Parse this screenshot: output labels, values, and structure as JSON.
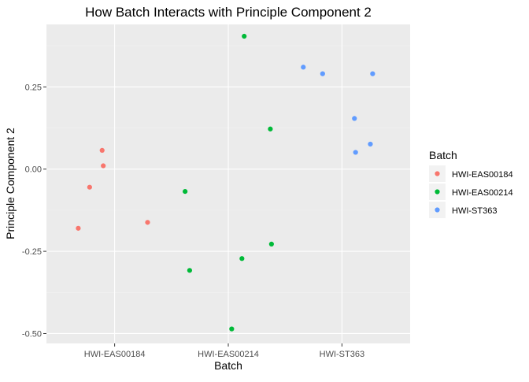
{
  "chart_data": {
    "type": "scatter",
    "title": "How Batch Interacts with Principle Component 2",
    "xlabel": "Batch",
    "ylabel": "Principle Component 2",
    "categories": [
      "HWI-EAS00184",
      "HWI-EAS00214",
      "HWI-ST363"
    ],
    "ylim": [
      -0.53,
      0.44
    ],
    "yticks": [
      -0.5,
      -0.25,
      0.0,
      0.25
    ],
    "ytick_labels": [
      "-0.50",
      "-0.25",
      "0.00",
      "0.25"
    ],
    "grid": true,
    "legend": {
      "title": "Batch",
      "placement": "right"
    },
    "series": [
      {
        "name": "HWI-EAS00184",
        "color": "#F8766D",
        "points": [
          {
            "x": -0.11,
            "y": 0.057
          },
          {
            "x": -0.1,
            "y": 0.01
          },
          {
            "x": -0.22,
            "y": -0.055
          },
          {
            "x": -0.32,
            "y": -0.18
          },
          {
            "x": 0.29,
            "y": -0.162
          }
        ]
      },
      {
        "name": "HWI-EAS00214",
        "color": "#00BA38",
        "points": [
          {
            "x": 1.14,
            "y": 0.404
          },
          {
            "x": 1.37,
            "y": 0.122
          },
          {
            "x": 0.62,
            "y": -0.068
          },
          {
            "x": 1.38,
            "y": -0.228
          },
          {
            "x": 1.12,
            "y": -0.272
          },
          {
            "x": 0.66,
            "y": -0.308
          },
          {
            "x": 1.03,
            "y": -0.486
          }
        ]
      },
      {
        "name": "HWI-ST363",
        "color": "#619CFF",
        "points": [
          {
            "x": 1.66,
            "y": 0.31
          },
          {
            "x": 1.83,
            "y": 0.29
          },
          {
            "x": 2.27,
            "y": 0.29
          },
          {
            "x": 2.11,
            "y": 0.154
          },
          {
            "x": 2.25,
            "y": 0.076
          },
          {
            "x": 2.12,
            "y": 0.051
          }
        ]
      }
    ]
  }
}
